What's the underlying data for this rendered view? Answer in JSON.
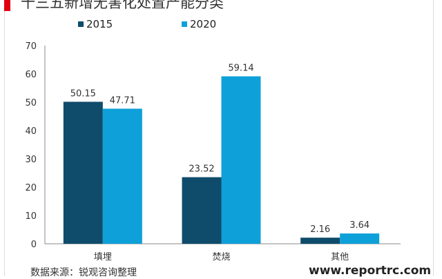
{
  "title": "十三五新增无害化处置产能分类",
  "source": "数据来源：锐观咨询整理",
  "watermark": "www.reportrc.com",
  "chart_data": {
    "type": "bar",
    "title": "十三五新增无害化处置产能分类",
    "categories": [
      "填埋",
      "焚烧",
      "其他"
    ],
    "series": [
      {
        "name": "2015",
        "color": "#0f4c6b",
        "values": [
          50.15,
          23.52,
          2.16
        ]
      },
      {
        "name": "2020",
        "color": "#0ea0d8",
        "values": [
          47.71,
          59.14,
          3.64
        ]
      }
    ],
    "ylim": [
      0,
      70
    ],
    "yticks": [
      0,
      10,
      20,
      30,
      40,
      50,
      60,
      70
    ],
    "legend": "top",
    "grid": false
  }
}
